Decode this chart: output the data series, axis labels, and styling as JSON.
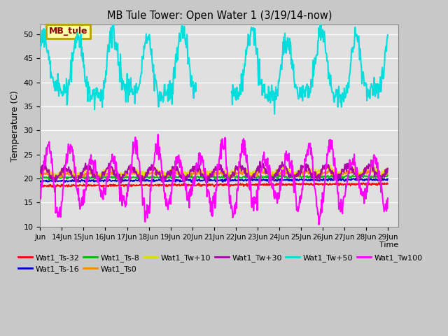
{
  "title": "MB Tule Tower: Open Water 1 (3/19/14-now)",
  "xlabel": "Time",
  "ylabel": "Temperature (C)",
  "ylim": [
    10,
    52
  ],
  "yticks": [
    10,
    15,
    20,
    25,
    30,
    35,
    40,
    45,
    50
  ],
  "fig_bg_color": "#c8c8c8",
  "plot_bg_color": "#e0e0e0",
  "legend_box_color": "#b8a000",
  "legend_box_bg": "#ffffaa",
  "legend_label": "MB_tule",
  "legend_label_color": "#8b0000",
  "series_colors": {
    "Wat1_Ts-32": "#ff0000",
    "Wat1_Ts-16": "#0000cc",
    "Wat1_Ts-8": "#00bb00",
    "Wat1_Ts0": "#ff8800",
    "Wat1_Tw+10": "#dddd00",
    "Wat1_Tw+30": "#aa00aa",
    "Wat1_Tw+50": "#00dddd",
    "Wat1_Tw100": "#ff00ff"
  },
  "xstart": 13,
  "xend": 29.5,
  "n_days": 16,
  "pts_per_day": 48
}
